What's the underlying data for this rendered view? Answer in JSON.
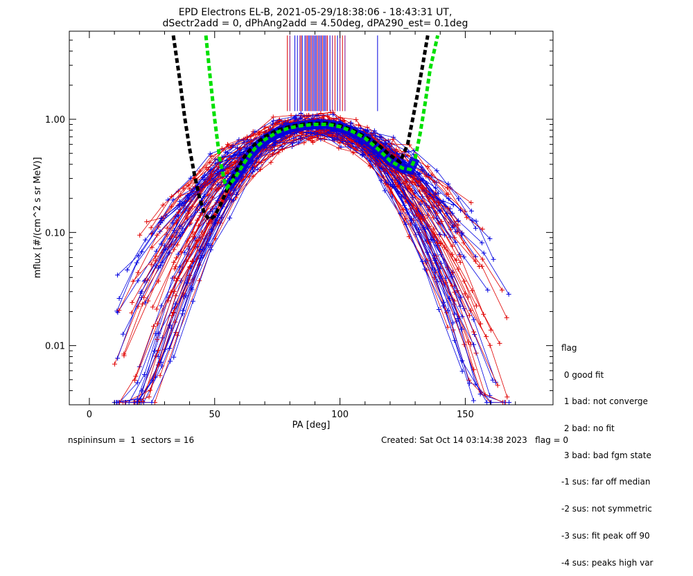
{
  "chart_data": {
    "type": "line",
    "title": "EPD Electrons EL-B, 2021-05-29/18:38:06 - 18:43:31 UT,",
    "subtitle": "dSectr2add = 0, dPhAng2add = 4.50deg, dPA290_est=   0.1deg",
    "xlabel": "PA [deg]",
    "ylabel": "mflux [#/(cm^2 s sr MeV)]",
    "xlim": [
      -8,
      185
    ],
    "ylim": [
      0.003,
      6.0
    ],
    "yscale": "log",
    "x_ticks": [
      0,
      50,
      100,
      150
    ],
    "x_tick_labels": [
      "0",
      "50",
      "100",
      "150"
    ],
    "y_ticks": [
      0.01,
      0.1,
      1.0
    ],
    "y_tick_labels": [
      "0.01",
      "0.10",
      "1.00"
    ],
    "grid": false,
    "colors": {
      "red": "#e00000",
      "blue": "#0000e0",
      "purple": "#800080",
      "black": "#000000",
      "green": "#00e000"
    },
    "fit_black": {
      "x": [
        33.5,
        36,
        38,
        40,
        42,
        44,
        46,
        48,
        50,
        52,
        55,
        58,
        62,
        66,
        70,
        75,
        80,
        85,
        90,
        95,
        100,
        105,
        110,
        115,
        120,
        124,
        127,
        129,
        131,
        133,
        135
      ],
      "y": [
        5.5,
        2.3,
        1.05,
        0.55,
        0.32,
        0.2,
        0.145,
        0.13,
        0.14,
        0.17,
        0.24,
        0.33,
        0.47,
        0.6,
        0.7,
        0.8,
        0.86,
        0.9,
        0.92,
        0.92,
        0.88,
        0.8,
        0.7,
        0.6,
        0.48,
        0.42,
        0.6,
        1.0,
        1.7,
        3.0,
        5.5
      ]
    },
    "fit_green": {
      "x": [
        46.5,
        48,
        50,
        52,
        54,
        55,
        58,
        62,
        66,
        70,
        75,
        80,
        85,
        90,
        95,
        100,
        105,
        110,
        115,
        120,
        125,
        128,
        130,
        132,
        134,
        136,
        139
      ],
      "y": [
        5.5,
        2.6,
        1.0,
        0.45,
        0.28,
        0.25,
        0.3,
        0.42,
        0.55,
        0.66,
        0.77,
        0.84,
        0.88,
        0.9,
        0.9,
        0.86,
        0.78,
        0.68,
        0.55,
        0.43,
        0.37,
        0.36,
        0.45,
        0.75,
        1.4,
        2.8,
        5.5
      ]
    },
    "peak_flags": {
      "x": [
        79,
        80,
        82,
        83,
        84,
        84.5,
        85,
        86,
        86.5,
        87,
        87.5,
        88,
        88.5,
        89,
        89.5,
        90,
        90.5,
        91,
        91.5,
        92,
        92.5,
        93,
        93.5,
        94,
        94.5,
        95,
        96,
        97,
        98,
        99,
        100,
        101,
        102,
        115
      ],
      "color": [
        "red",
        "purple",
        "blue",
        "blue",
        "purple",
        "red",
        "blue",
        "blue",
        "purple",
        "red",
        "blue",
        "blue",
        "red",
        "blue",
        "purple",
        "blue",
        "blue",
        "red",
        "blue",
        "purple",
        "blue",
        "red",
        "blue",
        "blue",
        "purple",
        "red",
        "blue",
        "purple",
        "red",
        "blue",
        "purple",
        "red",
        "purple",
        "blue"
      ],
      "top": 5.5,
      "bottom_blue": 1.18,
      "bottom_other": 1.18
    }
  },
  "legend": {
    "title": "flag",
    "items": [
      " 0 good fit",
      " 1 bad: not converge",
      " 2 bad: no fit",
      " 3 bad: bad fgm state",
      "-1 sus: far off median",
      "-2 sus: not symmetric",
      "-3 sus: fit peak off 90",
      "-4 sus: peaks high var"
    ]
  },
  "footer": {
    "left": "nspininsum =  1  sectors = 16",
    "right": "Created: Sat Oct 14 03:14:38 2023   flag = 0"
  }
}
